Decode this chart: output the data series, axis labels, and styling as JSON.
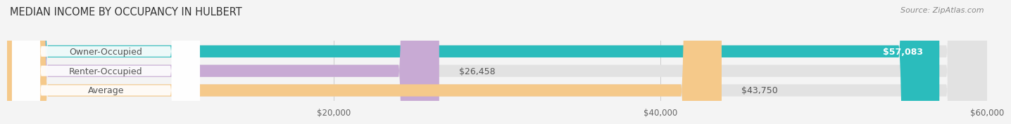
{
  "title": "MEDIAN INCOME BY OCCUPANCY IN HULBERT",
  "source": "Source: ZipAtlas.com",
  "categories": [
    "Owner-Occupied",
    "Renter-Occupied",
    "Average"
  ],
  "values": [
    57083,
    26458,
    43750
  ],
  "labels": [
    "$57,083",
    "$26,458",
    "$43,750"
  ],
  "bar_colors": [
    "#2bbcbc",
    "#c8aad4",
    "#f5c98a"
  ],
  "xlim": [
    0,
    60000
  ],
  "xticks": [
    20000,
    40000,
    60000
  ],
  "xticklabels": [
    "$20,000",
    "$40,000",
    "$60,000"
  ],
  "bar_height": 0.62,
  "background_color": "#f4f4f4",
  "title_fontsize": 10.5,
  "label_fontsize": 9,
  "value_fontsize": 9,
  "tick_fontsize": 8.5,
  "source_fontsize": 8
}
